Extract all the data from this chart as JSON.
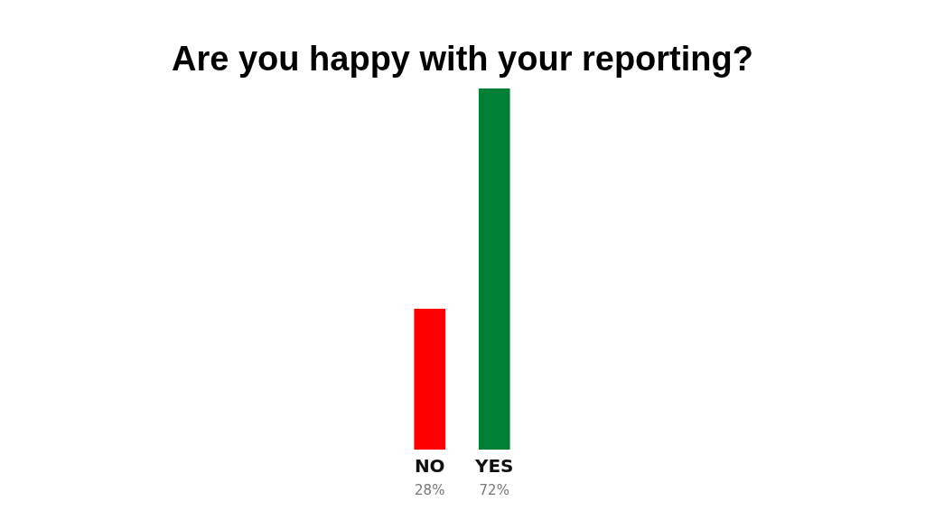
{
  "chart_data": {
    "type": "bar",
    "title": "Are you happy with your reporting?",
    "categories": [
      "NO",
      "YES"
    ],
    "values": [
      28,
      72
    ],
    "colors": [
      "#ff0000",
      "#008037"
    ],
    "value_labels": [
      "28%",
      "72%"
    ],
    "grid": false,
    "legend": false
  }
}
